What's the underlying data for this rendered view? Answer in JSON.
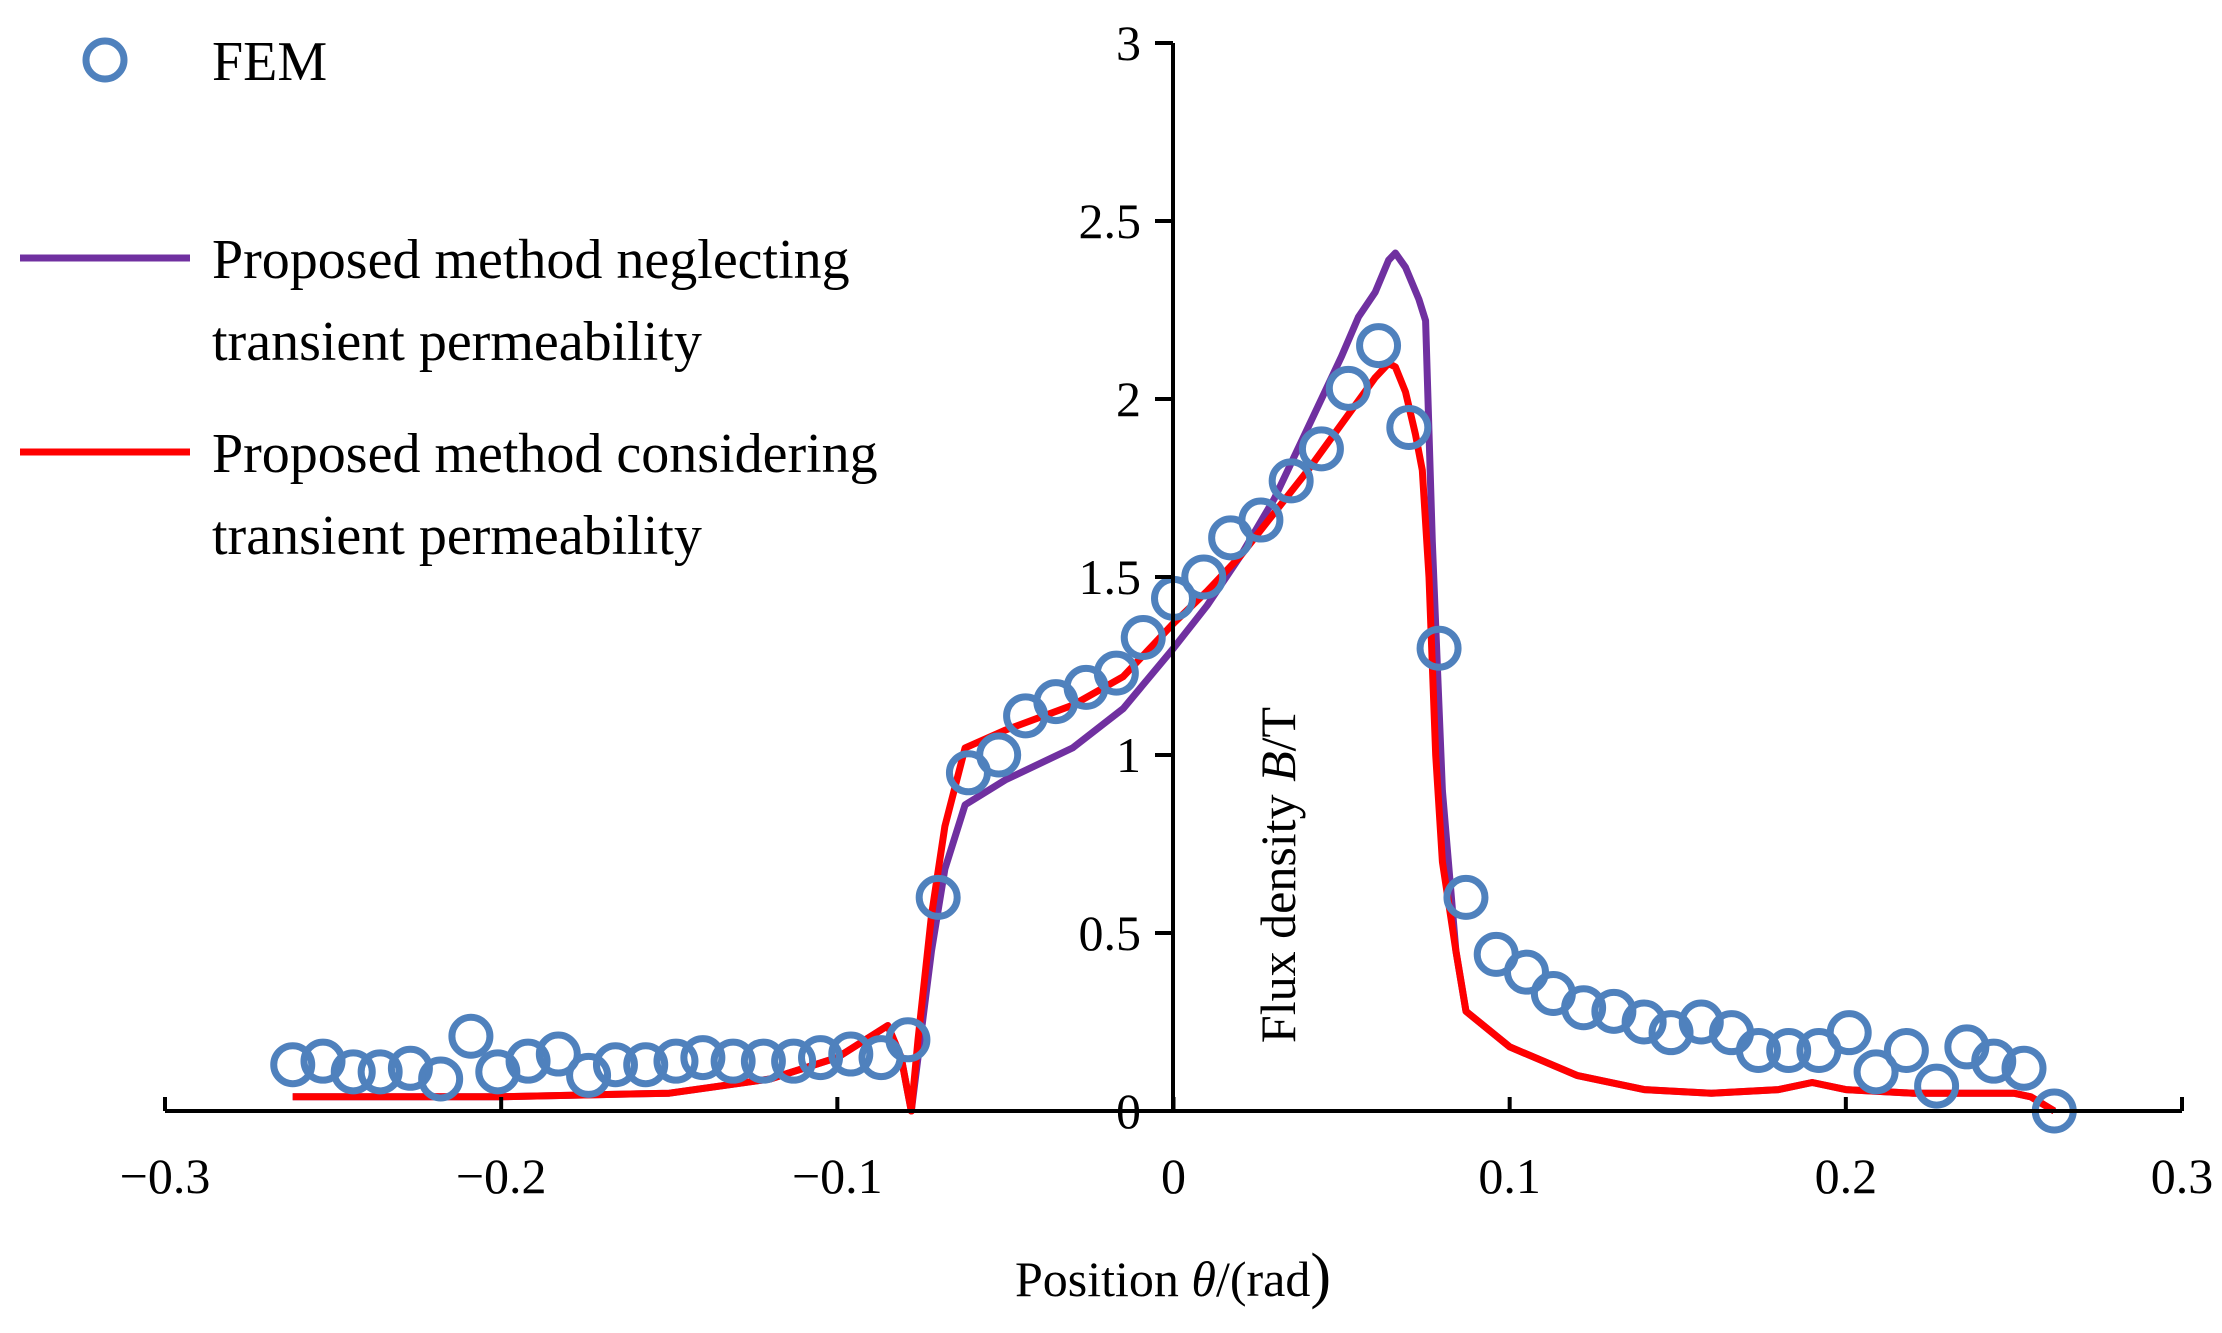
{
  "chart_data": {
    "type": "line",
    "title": "",
    "xlabel_prefix": "Position ",
    "xlabel_symbol": "θ",
    "xlabel_suffix": "/(rad",
    "xlabel_paren": ")",
    "ylabel_prefix": "Flux density ",
    "ylabel_symbol": "B",
    "ylabel_suffix": "/T",
    "xlim": [
      -0.3,
      0.3
    ],
    "ylim": [
      0,
      3
    ],
    "x_ticks": [
      -0.3,
      -0.2,
      -0.1,
      0,
      0.1,
      0.2,
      0.3
    ],
    "x_tick_labels": [
      "−0.3",
      "−0.2",
      "−0.1",
      "0",
      "0.1",
      "0.2",
      "0.3"
    ],
    "y_ticks": [
      0,
      0.5,
      1,
      1.5,
      2,
      2.5,
      3
    ],
    "y_tick_labels": [
      "0",
      "0.5",
      "1",
      "1.5",
      "2",
      "2.5",
      "3"
    ],
    "legend": {
      "position": "top-left",
      "entries": [
        {
          "label": "FEM",
          "lines": [
            "FEM"
          ],
          "marker": "circle",
          "color": "#4f81bd"
        },
        {
          "label": "Proposed method neglecting transient permeability",
          "lines": [
            "Proposed method neglecting",
            "transient permeability"
          ],
          "marker": "line",
          "color": "#7030a0"
        },
        {
          "label": "Proposed method considering transient permeability",
          "lines": [
            "Proposed method considering",
            "transient permeability"
          ],
          "marker": "line",
          "color": "#ff0000"
        }
      ]
    },
    "series": [
      {
        "name": "FEM",
        "style": "markers",
        "color": "#4f81bd",
        "points": [
          [
            -0.262,
            0.13
          ],
          [
            -0.253,
            0.14
          ],
          [
            -0.244,
            0.11
          ],
          [
            -0.236,
            0.11
          ],
          [
            -0.227,
            0.12
          ],
          [
            -0.218,
            0.09
          ],
          [
            -0.209,
            0.21
          ],
          [
            -0.201,
            0.11
          ],
          [
            -0.192,
            0.14
          ],
          [
            -0.183,
            0.16
          ],
          [
            -0.174,
            0.1
          ],
          [
            -0.166,
            0.13
          ],
          [
            -0.157,
            0.13
          ],
          [
            -0.148,
            0.14
          ],
          [
            -0.14,
            0.15
          ],
          [
            -0.131,
            0.14
          ],
          [
            -0.122,
            0.14
          ],
          [
            -0.113,
            0.14
          ],
          [
            -0.105,
            0.15
          ],
          [
            -0.096,
            0.16
          ],
          [
            -0.087,
            0.15
          ],
          [
            -0.079,
            0.2
          ],
          [
            -0.07,
            0.6
          ],
          [
            -0.061,
            0.95
          ],
          [
            -0.052,
            1.0
          ],
          [
            -0.044,
            1.11
          ],
          [
            -0.035,
            1.15
          ],
          [
            -0.026,
            1.19
          ],
          [
            -0.017,
            1.23
          ],
          [
            -0.009,
            1.33
          ],
          [
            0.0,
            1.44
          ],
          [
            0.009,
            1.5
          ],
          [
            0.017,
            1.61
          ],
          [
            0.026,
            1.66
          ],
          [
            0.035,
            1.77
          ],
          [
            0.044,
            1.86
          ],
          [
            0.052,
            2.03
          ],
          [
            0.061,
            2.15
          ],
          [
            0.07,
            1.92
          ],
          [
            0.079,
            1.3
          ],
          [
            0.087,
            0.6
          ],
          [
            0.096,
            0.44
          ],
          [
            0.105,
            0.39
          ],
          [
            0.113,
            0.33
          ],
          [
            0.122,
            0.29
          ],
          [
            0.131,
            0.28
          ],
          [
            0.14,
            0.25
          ],
          [
            0.148,
            0.22
          ],
          [
            0.157,
            0.25
          ],
          [
            0.166,
            0.22
          ],
          [
            0.174,
            0.17
          ],
          [
            0.183,
            0.17
          ],
          [
            0.192,
            0.17
          ],
          [
            0.201,
            0.22
          ],
          [
            0.209,
            0.11
          ],
          [
            0.218,
            0.17
          ],
          [
            0.227,
            0.07
          ],
          [
            0.236,
            0.18
          ],
          [
            0.244,
            0.14
          ],
          [
            0.253,
            0.12
          ],
          [
            0.262,
            0.0
          ]
        ]
      },
      {
        "name": "Proposed method neglecting transient permeability",
        "style": "line",
        "color": "#7030a0",
        "points": [
          [
            -0.262,
            0.04
          ],
          [
            -0.2,
            0.04
          ],
          [
            -0.15,
            0.05
          ],
          [
            -0.12,
            0.09
          ],
          [
            -0.1,
            0.15
          ],
          [
            -0.085,
            0.24
          ],
          [
            -0.081,
            0.15
          ],
          [
            -0.079,
            0.05
          ],
          [
            -0.078,
            0.0
          ],
          [
            -0.076,
            0.15
          ],
          [
            -0.072,
            0.45
          ],
          [
            -0.068,
            0.68
          ],
          [
            -0.062,
            0.86
          ],
          [
            -0.05,
            0.93
          ],
          [
            -0.03,
            1.02
          ],
          [
            -0.015,
            1.13
          ],
          [
            0.0,
            1.3
          ],
          [
            0.01,
            1.42
          ],
          [
            0.02,
            1.56
          ],
          [
            0.03,
            1.72
          ],
          [
            0.04,
            1.92
          ],
          [
            0.05,
            2.12
          ],
          [
            0.055,
            2.23
          ],
          [
            0.06,
            2.3
          ],
          [
            0.064,
            2.39
          ],
          [
            0.066,
            2.41
          ],
          [
            0.069,
            2.37
          ],
          [
            0.073,
            2.28
          ],
          [
            0.075,
            2.22
          ],
          [
            0.077,
            1.6
          ],
          [
            0.08,
            0.9
          ],
          [
            0.084,
            0.45
          ],
          [
            0.087,
            0.28
          ],
          [
            0.1,
            0.18
          ],
          [
            0.12,
            0.1
          ],
          [
            0.14,
            0.06
          ],
          [
            0.16,
            0.05
          ],
          [
            0.18,
            0.06
          ],
          [
            0.19,
            0.08
          ],
          [
            0.2,
            0.06
          ],
          [
            0.22,
            0.05
          ],
          [
            0.24,
            0.05
          ],
          [
            0.25,
            0.05
          ],
          [
            0.255,
            0.04
          ],
          [
            0.262,
            0.0
          ]
        ]
      },
      {
        "name": "Proposed method considering transient permeability",
        "style": "line",
        "color": "#ff0000",
        "points": [
          [
            -0.262,
            0.04
          ],
          [
            -0.2,
            0.04
          ],
          [
            -0.15,
            0.05
          ],
          [
            -0.12,
            0.09
          ],
          [
            -0.1,
            0.15
          ],
          [
            -0.085,
            0.24
          ],
          [
            -0.081,
            0.15
          ],
          [
            -0.079,
            0.05
          ],
          [
            -0.078,
            0.0
          ],
          [
            -0.076,
            0.2
          ],
          [
            -0.072,
            0.55
          ],
          [
            -0.068,
            0.8
          ],
          [
            -0.062,
            1.02
          ],
          [
            -0.05,
            1.07
          ],
          [
            -0.03,
            1.14
          ],
          [
            -0.015,
            1.22
          ],
          [
            0.0,
            1.37
          ],
          [
            0.01,
            1.46
          ],
          [
            0.02,
            1.56
          ],
          [
            0.03,
            1.68
          ],
          [
            0.04,
            1.8
          ],
          [
            0.05,
            1.93
          ],
          [
            0.06,
            2.06
          ],
          [
            0.064,
            2.1
          ],
          [
            0.066,
            2.09
          ],
          [
            0.069,
            2.02
          ],
          [
            0.072,
            1.9
          ],
          [
            0.074,
            1.8
          ],
          [
            0.076,
            1.5
          ],
          [
            0.078,
            1.0
          ],
          [
            0.08,
            0.7
          ],
          [
            0.084,
            0.45
          ],
          [
            0.087,
            0.28
          ],
          [
            0.1,
            0.18
          ],
          [
            0.12,
            0.1
          ],
          [
            0.14,
            0.06
          ],
          [
            0.16,
            0.05
          ],
          [
            0.18,
            0.06
          ],
          [
            0.19,
            0.08
          ],
          [
            0.2,
            0.06
          ],
          [
            0.22,
            0.05
          ],
          [
            0.24,
            0.05
          ],
          [
            0.25,
            0.05
          ],
          [
            0.255,
            0.04
          ],
          [
            0.262,
            0.0
          ]
        ]
      }
    ]
  }
}
